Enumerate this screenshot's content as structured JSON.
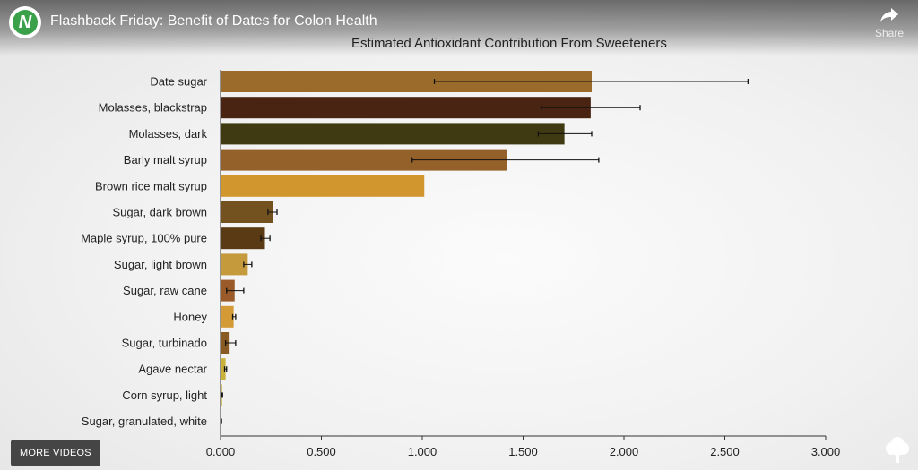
{
  "header": {
    "logo_letter": "N",
    "video_title": "Flashback Friday: Benefit of Dates for Colon Health",
    "share_label": "Share"
  },
  "overlay": {
    "more_videos_label": "MORE VIDEOS"
  },
  "chart_data": {
    "type": "bar",
    "orientation": "horizontal",
    "title": "Estimated Antioxidant Contribution From Sweeteners",
    "categories": [
      "Date sugar",
      "Molasses, blackstrap",
      "Molasses, dark",
      "Barly malt syrup",
      "Brown rice malt syrup",
      "Sugar, dark brown",
      "Maple syrup, 100% pure",
      "Sugar, light brown",
      "Sugar, raw cane",
      "Honey",
      "Sugar, turbinado",
      "Agave nectar",
      "Corn syrup, light",
      "Sugar, granulated, white"
    ],
    "values": [
      1.84,
      1.835,
      1.705,
      1.42,
      1.01,
      0.26,
      0.22,
      0.135,
      0.07,
      0.065,
      0.045,
      0.025,
      0.008,
      0.004
    ],
    "error_low": [
      1.06,
      1.59,
      1.575,
      0.95,
      null,
      0.235,
      0.2,
      0.115,
      0.03,
      0.06,
      0.025,
      0.02,
      0.005,
      0.003
    ],
    "error_high": [
      2.615,
      2.08,
      1.84,
      1.875,
      null,
      0.28,
      0.245,
      0.155,
      0.115,
      0.075,
      0.075,
      0.03,
      0.01,
      0.005
    ],
    "colors": [
      "#9a6b2a",
      "#4a2412",
      "#3f3a12",
      "#94612a",
      "#d1962e",
      "#74521f",
      "#5a3a14",
      "#c59a3c",
      "#9a5a2a",
      "#d49a35",
      "#8a5a24",
      "#c9b23c",
      "#c8b74a",
      "#a87a3a"
    ],
    "xlim": [
      0,
      3.0
    ],
    "xticks": [
      "0.000",
      "0.500",
      "1.000",
      "1.500",
      "2.000",
      "2.500",
      "3.000"
    ],
    "xlabel": "",
    "ylabel": ""
  }
}
